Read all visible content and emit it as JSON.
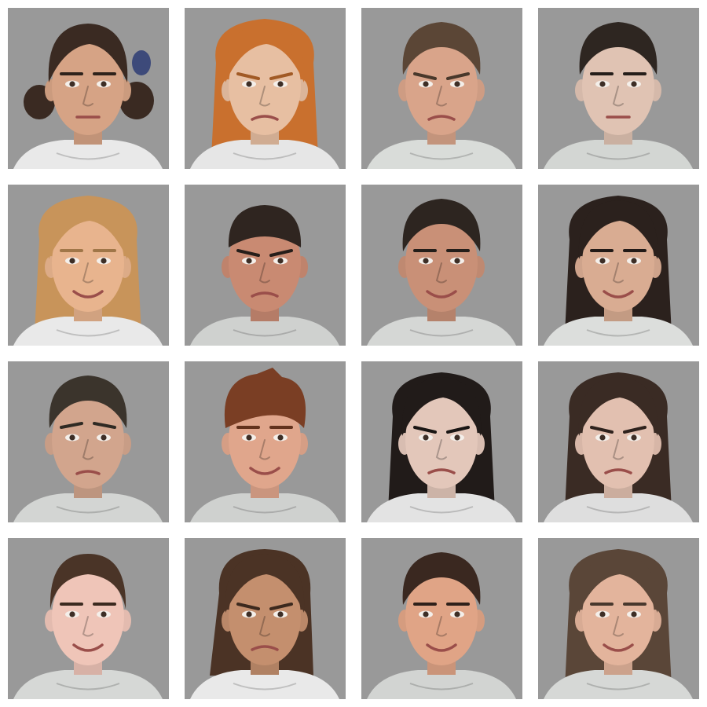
{
  "tile_background": "#999999",
  "page_background": "#ffffff",
  "photos": [
    {
      "subject": "woman-dark-hair-updo",
      "expression": "neutral",
      "hair": "#3a2a22",
      "skin": "#d6a385",
      "shirt": "#e9e9e9",
      "hair_style": "updo"
    },
    {
      "subject": "woman-red-hair",
      "expression": "angry",
      "hair": "#c9702e",
      "skin": "#e7bfa2",
      "shirt": "#e6e6e6",
      "hair_style": "long"
    },
    {
      "subject": "man-brown-hair",
      "expression": "disgusted",
      "hair": "#5b4636",
      "skin": "#d9a48a",
      "shirt": "#d9dcd9",
      "hair_style": "short"
    },
    {
      "subject": "man-dark-hair",
      "expression": "neutral",
      "hair": "#2e2621",
      "skin": "#e0c3b3",
      "shirt": "#d3d6d3",
      "hair_style": "short"
    },
    {
      "subject": "woman-blonde-hair",
      "expression": "happy",
      "hair": "#c8945a",
      "skin": "#e8b48e",
      "shirt": "#e9e9e9",
      "hair_style": "long"
    },
    {
      "subject": "man-buzzed-hair",
      "expression": "angry",
      "hair": "#2f2520",
      "skin": "#c98a72",
      "shirt": "#cfd1cf",
      "hair_style": "buzz"
    },
    {
      "subject": "man-stubble",
      "expression": "happy",
      "hair": "#2d2520",
      "skin": "#c99077",
      "shirt": "#d5d7d5",
      "hair_style": "short"
    },
    {
      "subject": "woman-dark-long-hair",
      "expression": "happy",
      "hair": "#2b211d",
      "skin": "#d9ac92",
      "shirt": "#dcdedc",
      "hair_style": "long"
    },
    {
      "subject": "man-side-part",
      "expression": "sad",
      "hair": "#3b342c",
      "skin": "#d2a58d",
      "shirt": "#d3d5d3",
      "hair_style": "short"
    },
    {
      "subject": "man-auburn-hair",
      "expression": "happy",
      "hair": "#7a3e24",
      "skin": "#e0a68c",
      "shirt": "#cfd1cf",
      "hair_style": "messy"
    },
    {
      "subject": "woman-black-hair",
      "expression": "angry",
      "hair": "#211b19",
      "skin": "#e3c7ba",
      "shirt": "#e3e3e3",
      "hair_style": "long"
    },
    {
      "subject": "man-long-hair",
      "expression": "angry",
      "hair": "#3a2b24",
      "skin": "#e2c0b0",
      "shirt": "#dedede",
      "hair_style": "long"
    },
    {
      "subject": "woman-pulled-back-hair",
      "expression": "happy",
      "hair": "#4a3427",
      "skin": "#efc5b8",
      "shirt": "#d6d8d6",
      "hair_style": "pulled"
    },
    {
      "subject": "woman-brown-bob",
      "expression": "angry",
      "hair": "#4b3325",
      "skin": "#c48f6e",
      "shirt": "#e9e9e9",
      "hair_style": "bob"
    },
    {
      "subject": "man-short-dark-hair",
      "expression": "happy",
      "hair": "#3a2820",
      "skin": "#e0a486",
      "shirt": "#d2d4d2",
      "hair_style": "short"
    },
    {
      "subject": "woman-straight-brown-hair",
      "expression": "happy",
      "hair": "#5a4638",
      "skin": "#e3b49c",
      "shirt": "#d6d8d6",
      "hair_style": "long"
    }
  ]
}
